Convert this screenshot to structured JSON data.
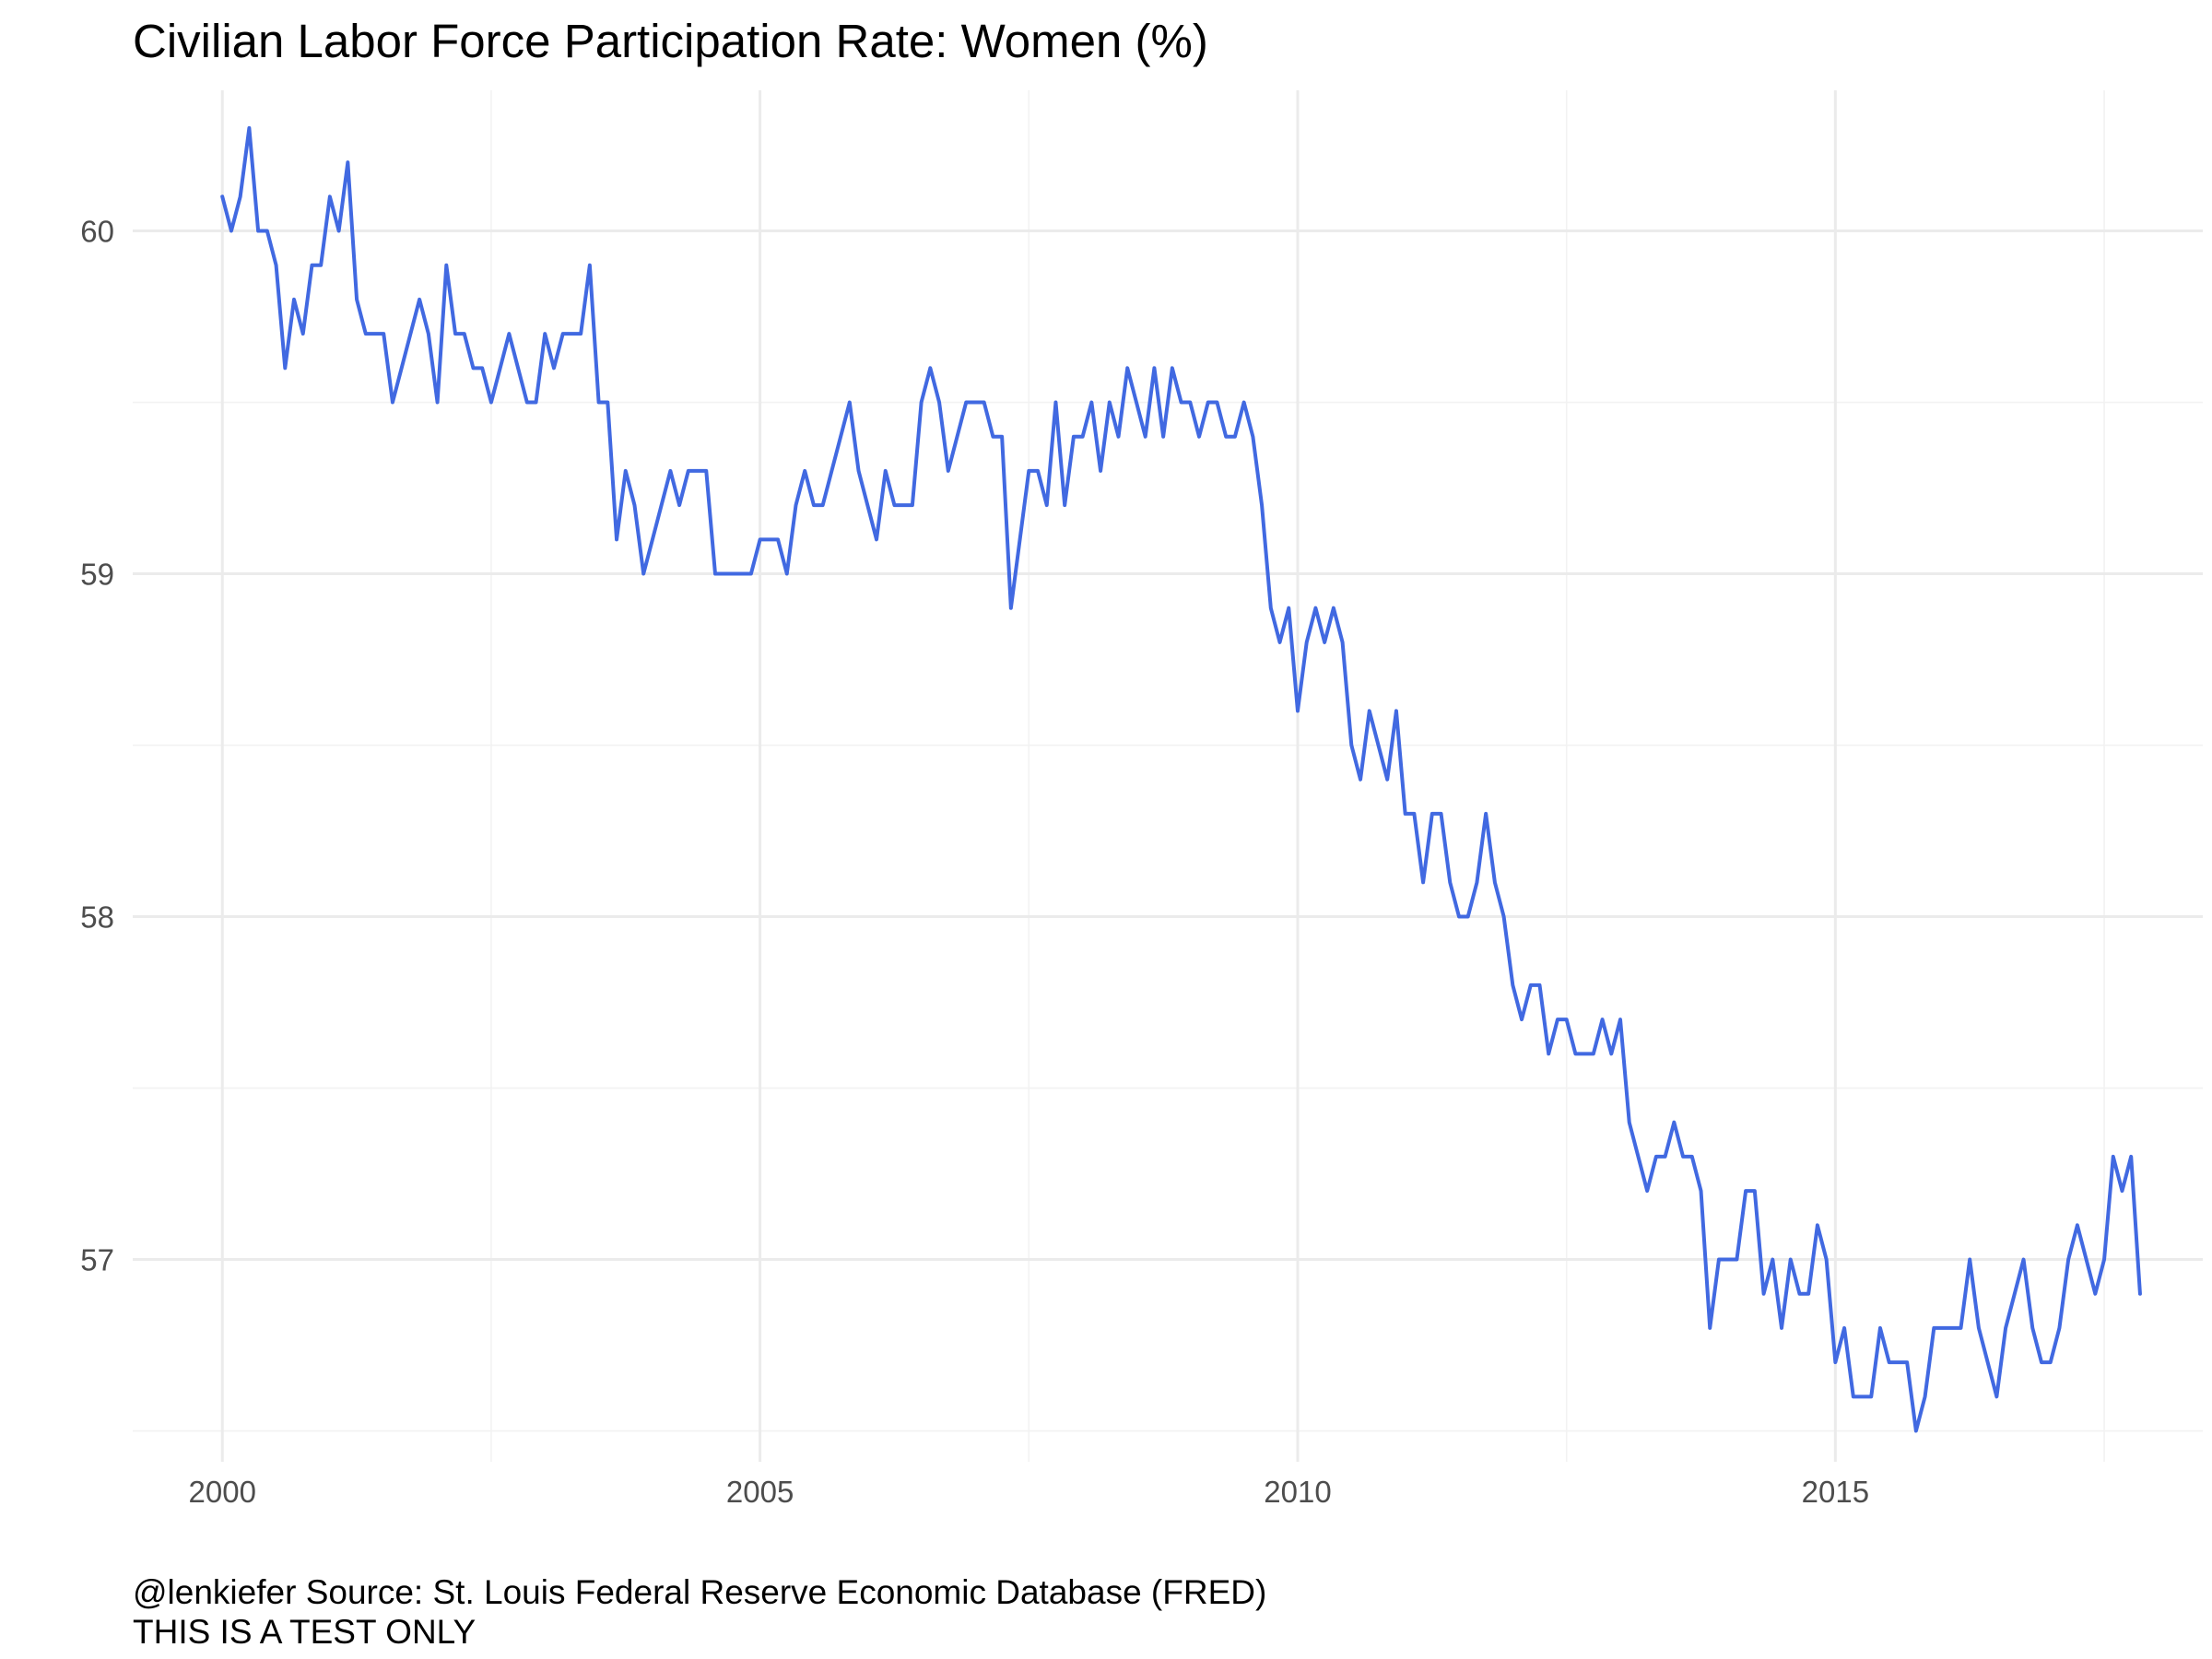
{
  "chart_data": {
    "type": "line",
    "title": "Civilian Labor Force Participation Rate: Women (%)",
    "xlabel": "",
    "ylabel": "",
    "caption": [
      "@lenkiefer Source: St. Louis Federal Reserve Economic Database (FRED)",
      "THIS IS A TEST ONLY"
    ],
    "x_ticks": [
      "2000",
      "2005",
      "2010",
      "2015"
    ],
    "y_ticks": [
      "57",
      "58",
      "59",
      "60"
    ],
    "xlim": [
      "1999-03-01",
      "2018-06-01"
    ],
    "ylim": [
      56.41,
      60.41
    ],
    "grid": true,
    "legend": "none",
    "line_color": "#4169e1",
    "series": [
      {
        "x_start": "2000-01",
        "frequency": "monthly",
        "values": [
          60.1,
          60.0,
          60.1,
          60.3,
          60.0,
          60.0,
          59.9,
          59.6,
          59.8,
          59.7,
          59.9,
          59.9,
          60.1,
          60.0,
          60.2,
          59.8,
          59.7,
          59.7,
          59.7,
          59.5,
          59.6,
          59.7,
          59.8,
          59.7,
          59.5,
          59.9,
          59.7,
          59.7,
          59.6,
          59.6,
          59.5,
          59.6,
          59.7,
          59.6,
          59.5,
          59.5,
          59.7,
          59.6,
          59.7,
          59.7,
          59.7,
          59.9,
          59.5,
          59.5,
          59.1,
          59.3,
          59.2,
          59.0,
          59.1,
          59.2,
          59.3,
          59.2,
          59.3,
          59.3,
          59.3,
          59.0,
          59.0,
          59.0,
          59.0,
          59.0,
          59.1,
          59.1,
          59.1,
          59.0,
          59.2,
          59.3,
          59.2,
          59.2,
          59.3,
          59.4,
          59.5,
          59.3,
          59.2,
          59.1,
          59.3,
          59.2,
          59.2,
          59.2,
          59.5,
          59.6,
          59.5,
          59.3,
          59.4,
          59.5,
          59.5,
          59.5,
          59.4,
          59.4,
          58.9,
          59.1,
          59.3,
          59.3,
          59.2,
          59.5,
          59.2,
          59.4,
          59.4,
          59.5,
          59.3,
          59.5,
          59.4,
          59.6,
          59.5,
          59.4,
          59.6,
          59.4,
          59.6,
          59.5,
          59.5,
          59.4,
          59.5,
          59.5,
          59.4,
          59.4,
          59.5,
          59.4,
          59.2,
          58.9,
          58.8,
          58.9,
          58.6,
          58.8,
          58.9,
          58.8,
          58.9,
          58.8,
          58.5,
          58.4,
          58.6,
          58.5,
          58.4,
          58.6,
          58.3,
          58.3,
          58.1,
          58.3,
          58.3,
          58.1,
          58.0,
          58.0,
          58.1,
          58.3,
          58.1,
          58.0,
          57.8,
          57.7,
          57.8,
          57.8,
          57.6,
          57.7,
          57.7,
          57.6,
          57.6,
          57.6,
          57.7,
          57.6,
          57.7,
          57.4,
          57.3,
          57.2,
          57.3,
          57.3,
          57.4,
          57.3,
          57.3,
          57.2,
          56.8,
          57.0,
          57.0,
          57.0,
          57.2,
          57.2,
          56.9,
          57.0,
          56.8,
          57.0,
          56.9,
          56.9,
          57.1,
          57.0,
          56.7,
          56.8,
          56.6,
          56.6,
          56.6,
          56.8,
          56.7,
          56.7,
          56.7,
          56.5,
          56.6,
          56.8,
          56.8,
          56.8,
          56.8,
          57.0,
          56.8,
          56.7,
          56.6,
          56.8,
          56.9,
          57.0,
          56.8,
          56.7,
          56.7,
          56.8,
          57.0,
          57.1,
          57.0,
          56.9,
          57.0,
          57.3,
          57.2,
          57.3,
          56.9
        ]
      }
    ]
  }
}
